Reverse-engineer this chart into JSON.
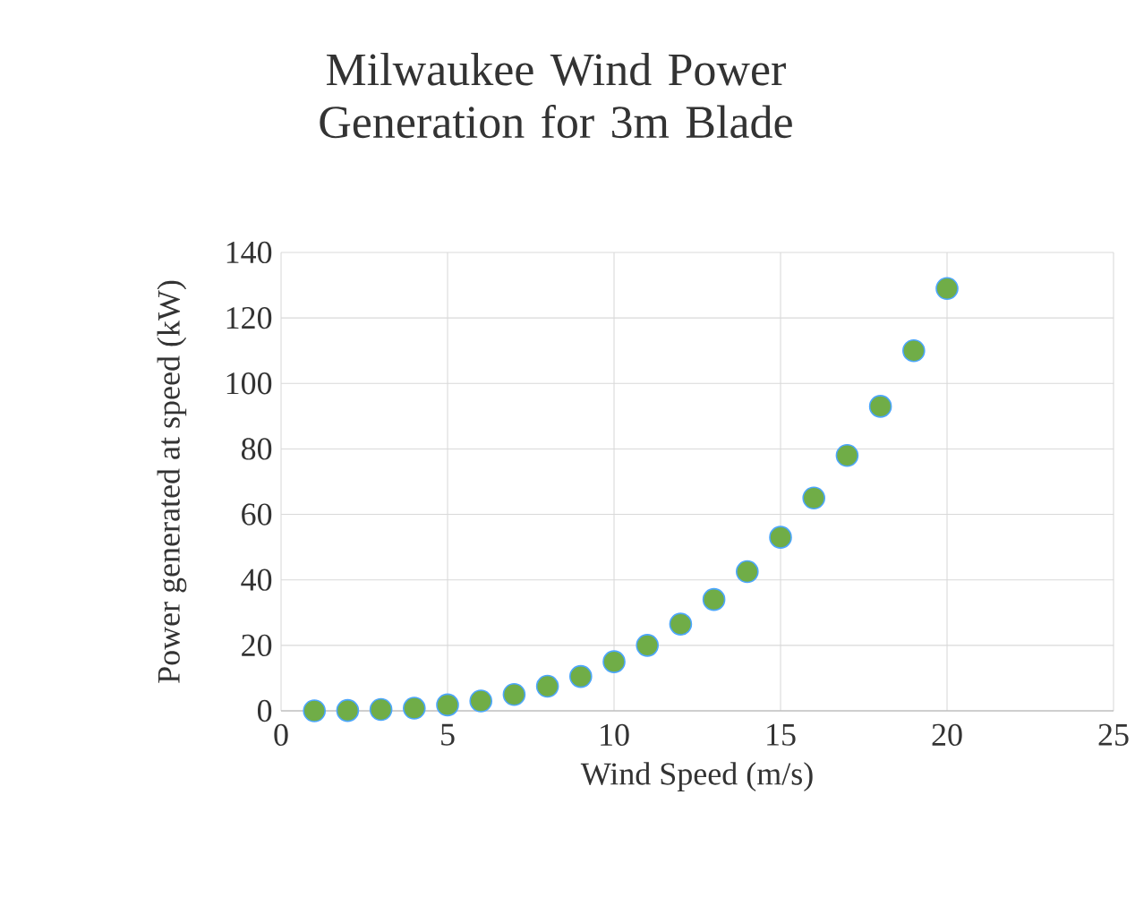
{
  "chart_data": {
    "type": "scatter",
    "title": "Milwaukee Wind Power Generation for 3m Blade",
    "xlabel": "Wind Speed (m/s)",
    "ylabel": "Power generated at speed (kW)",
    "x": [
      1,
      2,
      3,
      4,
      5,
      6,
      7,
      8,
      9,
      10,
      11,
      12,
      13,
      14,
      15,
      16,
      17,
      18,
      19,
      20
    ],
    "series": [
      {
        "color": "#70ad47",
        "values": [
          0,
          0.1,
          0.4,
          0.8,
          1.8,
          3,
          5,
          7.5,
          10.5,
          15,
          20,
          26.5,
          34,
          42.5,
          53,
          65,
          78,
          93,
          110,
          129
        ]
      }
    ],
    "xlim": [
      0,
      25
    ],
    "xticks": [
      0,
      5,
      10,
      15,
      20,
      25
    ],
    "ylim": [
      0,
      140
    ],
    "yticks": [
      0,
      20,
      40,
      60,
      80,
      100,
      120,
      140
    ],
    "grid": true,
    "marker": "circle"
  }
}
